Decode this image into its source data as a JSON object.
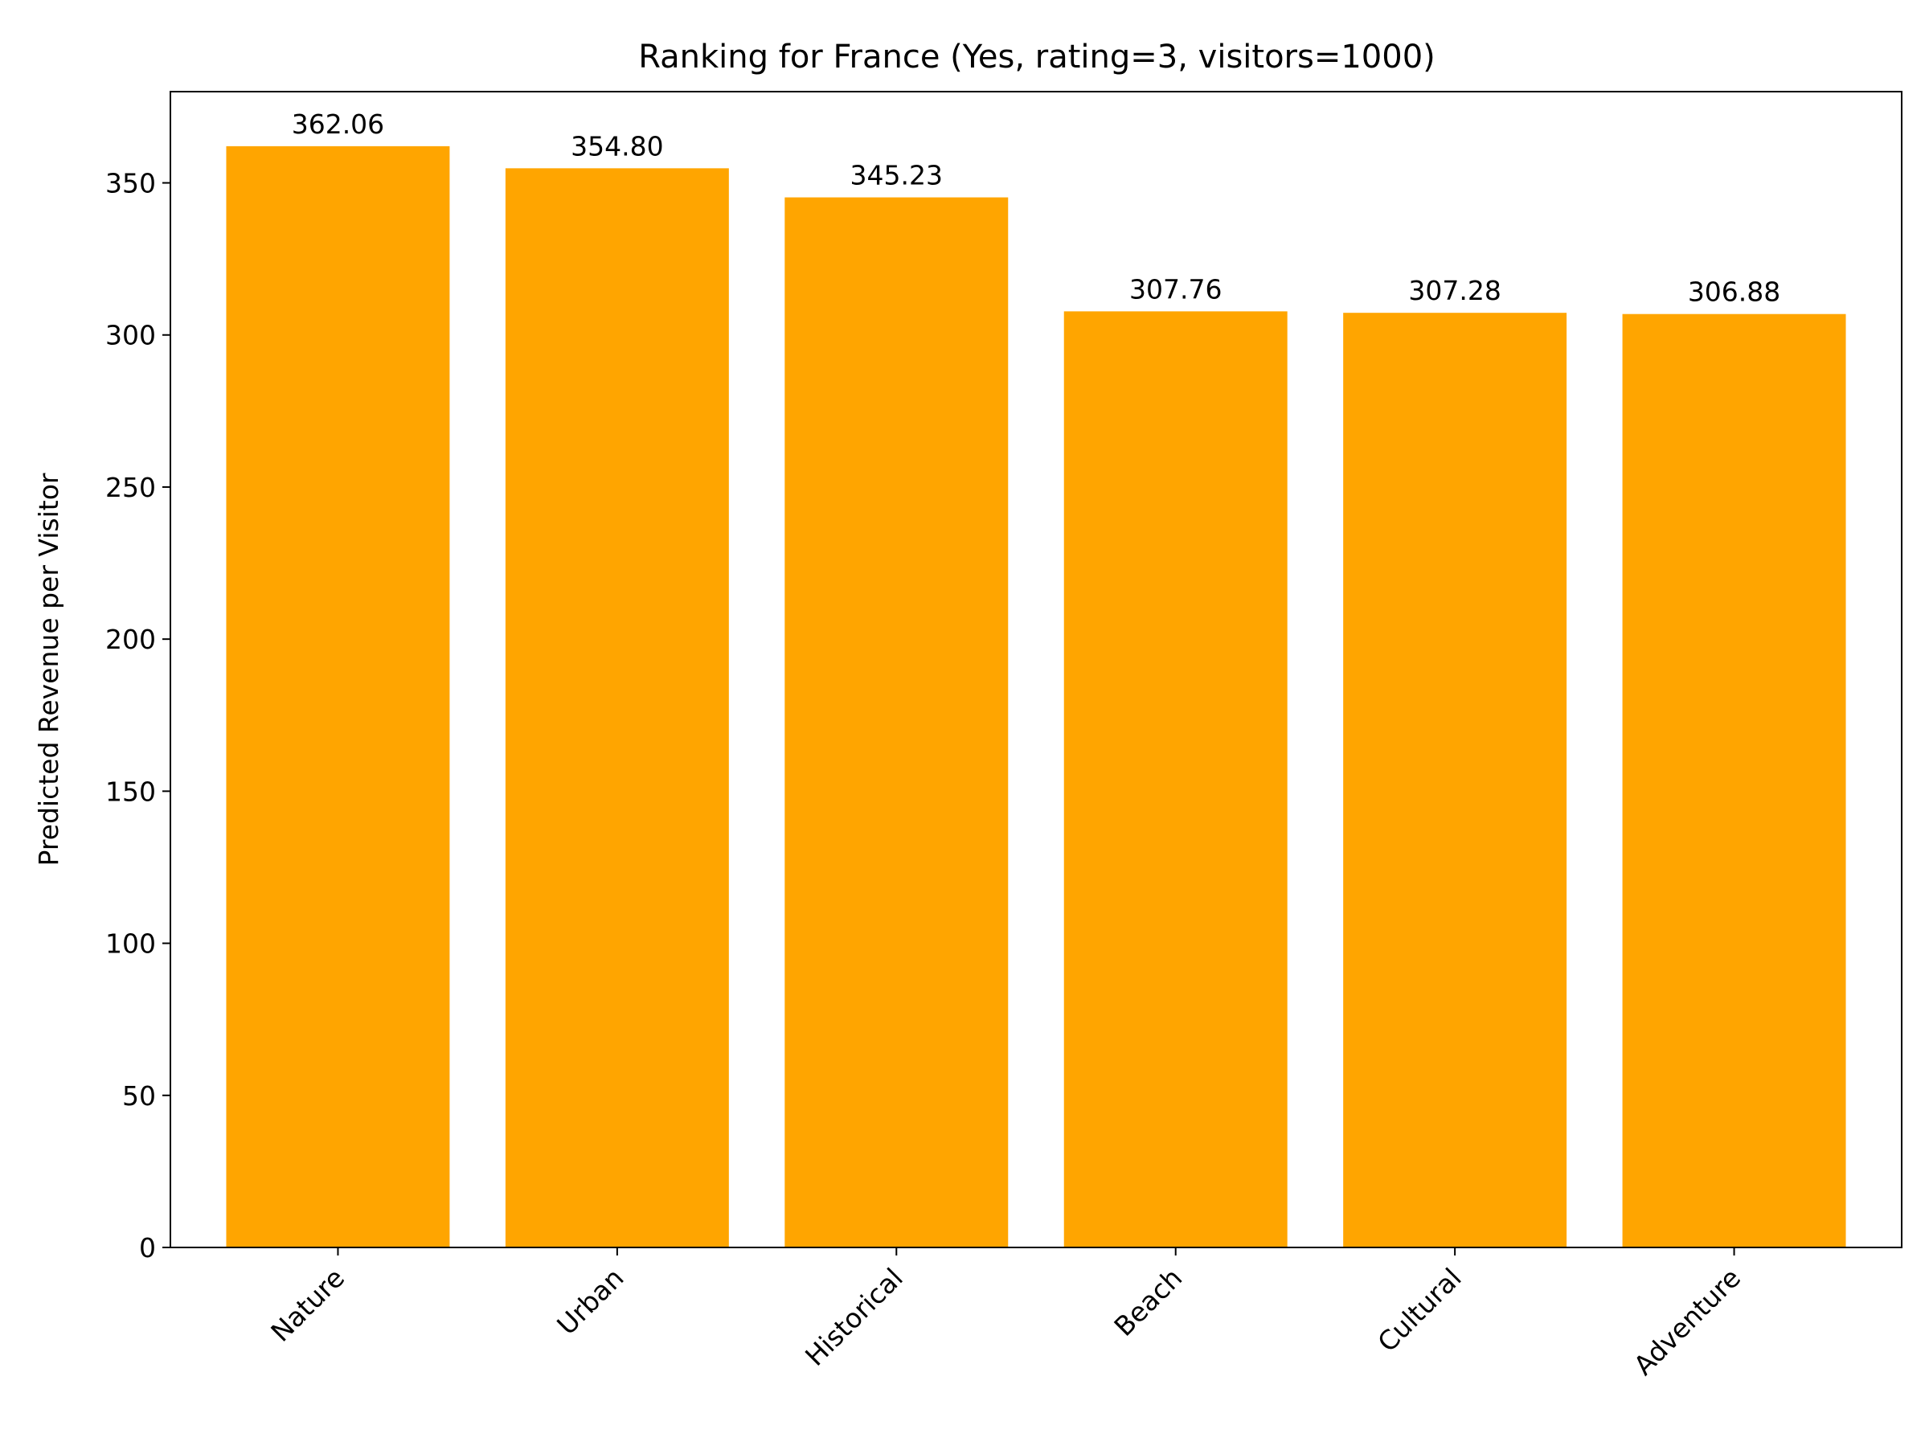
{
  "chart_data": {
    "type": "bar",
    "title": "Ranking for France (Yes, rating=3, visitors=1000)",
    "xlabel": "",
    "ylabel": "Predicted Revenue per Visitor",
    "categories": [
      "Nature",
      "Urban",
      "Historical",
      "Beach",
      "Cultural",
      "Adventure"
    ],
    "values": [
      362.06,
      354.8,
      345.23,
      307.76,
      307.28,
      306.88
    ],
    "value_labels": [
      "362.06",
      "354.80",
      "345.23",
      "307.76",
      "307.28",
      "306.88"
    ],
    "ylim": [
      0,
      380
    ],
    "yticks": [
      0,
      50,
      100,
      150,
      200,
      250,
      300,
      350
    ],
    "ytick_labels": [
      "0",
      "50",
      "100",
      "150",
      "200",
      "250",
      "300",
      "350"
    ],
    "bar_color": "#ffa500",
    "grid": false,
    "legend": "none"
  }
}
